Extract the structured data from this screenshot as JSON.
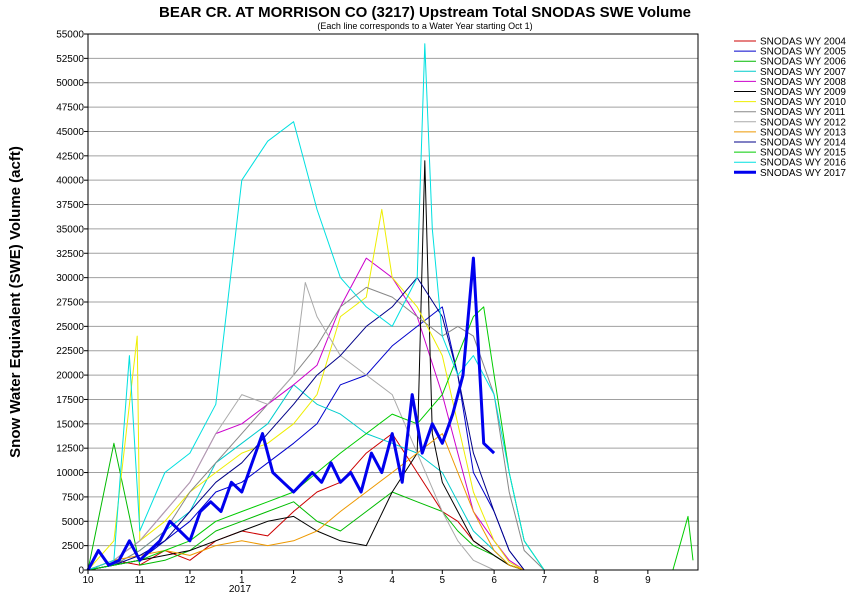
{
  "chart_data": {
    "type": "line",
    "title": "BEAR CR. AT MORRISON CO (3217) Upstream Total SNODAS SWE Volume",
    "subtitle": "(Each line corresponds to a Water Year starting Oct 1)",
    "ylabel": "Snow Water Equivalent (SWE) Volume (acft)",
    "xlabel": "",
    "ylim": [
      0,
      55000
    ],
    "ytick_step": 2500,
    "x_axis": {
      "unit": "month of water year (10 = Oct 1)",
      "range": [
        10,
        9.95
      ],
      "tick_labels": [
        "10",
        "11",
        "12",
        "1",
        "2",
        "3",
        "4",
        "5",
        "6",
        "7",
        "8",
        "9"
      ],
      "year_label": "2017"
    },
    "grid": true,
    "legend_position": "right",
    "highlight_series": "SNODAS WY 2017",
    "series": [
      {
        "name": "SNODAS WY 2004",
        "color": "#cc0000",
        "width": 1,
        "x": [
          10.0,
          10.5,
          11.0,
          11.5,
          12.0,
          12.5,
          1.0,
          1.5,
          2.0,
          2.5,
          3.0,
          3.5,
          4.0,
          4.5,
          5.0,
          5.3,
          5.6,
          6.0,
          6.3,
          6.6,
          7.0
        ],
        "y": [
          0,
          1000,
          500,
          2000,
          1000,
          3000,
          4000,
          3500,
          6000,
          8000,
          9000,
          12000,
          14000,
          10000,
          6000,
          5000,
          3000,
          1500,
          500,
          0,
          0
        ]
      },
      {
        "name": "SNODAS WY 2005",
        "color": "#0000cc",
        "width": 1,
        "x": [
          10.0,
          10.5,
          11.0,
          11.5,
          12.0,
          12.5,
          1.0,
          1.5,
          2.0,
          2.5,
          3.0,
          3.5,
          4.0,
          4.5,
          5.0,
          5.3,
          5.6,
          6.0,
          6.3,
          6.6,
          7.0
        ],
        "y": [
          0,
          500,
          1000,
          3000,
          5000,
          8000,
          9000,
          11000,
          13000,
          15000,
          19000,
          20000,
          23000,
          25000,
          27000,
          20000,
          10000,
          6000,
          2000,
          0,
          0
        ]
      },
      {
        "name": "SNODAS WY 2006",
        "color": "#00bb00",
        "width": 1,
        "x": [
          10.0,
          10.5,
          11.0,
          11.5,
          12.0,
          12.5,
          1.0,
          1.5,
          2.0,
          2.5,
          3.0,
          3.5,
          4.0,
          4.5,
          5.0,
          5.3,
          5.6,
          6.0,
          6.3,
          6.6,
          7.0
        ],
        "y": [
          0,
          13000,
          500,
          1000,
          2000,
          4000,
          5000,
          6000,
          7000,
          5000,
          4000,
          6000,
          8000,
          7000,
          6000,
          4000,
          2500,
          1500,
          500,
          0,
          0
        ]
      },
      {
        "name": "SNODAS WY 2007",
        "color": "#00cccc",
        "width": 1,
        "x": [
          10.0,
          10.5,
          11.0,
          11.5,
          12.0,
          12.5,
          1.0,
          1.5,
          2.0,
          2.5,
          3.0,
          3.5,
          4.0,
          4.5,
          5.0,
          5.3,
          5.6,
          6.0,
          6.3,
          6.6,
          7.0
        ],
        "y": [
          0,
          500,
          2000,
          4000,
          6000,
          11000,
          13000,
          15000,
          19000,
          17000,
          16000,
          14000,
          13000,
          12000,
          10000,
          7000,
          4000,
          2000,
          500,
          0,
          0
        ]
      },
      {
        "name": "SNODAS WY 2008",
        "color": "#cc00cc",
        "width": 1,
        "x": [
          10.0,
          10.5,
          11.0,
          11.5,
          12.0,
          12.5,
          1.0,
          1.5,
          2.0,
          2.5,
          3.0,
          3.5,
          4.0,
          4.5,
          5.0,
          5.3,
          5.6,
          6.0,
          6.3,
          6.6,
          7.0
        ],
        "y": [
          0,
          1000,
          3000,
          6000,
          9000,
          14000,
          15000,
          17000,
          19000,
          21000,
          27000,
          32000,
          30000,
          26000,
          18000,
          12000,
          6000,
          3000,
          1000,
          0,
          0
        ]
      },
      {
        "name": "SNODAS WY 2009",
        "color": "#000000",
        "width": 1,
        "x": [
          10.0,
          10.5,
          11.0,
          11.5,
          12.0,
          12.5,
          1.0,
          1.5,
          2.0,
          2.5,
          3.0,
          3.5,
          4.0,
          4.5,
          4.65,
          4.8,
          5.0,
          5.3,
          5.6,
          6.0,
          6.3,
          6.6,
          7.0
        ],
        "y": [
          0,
          500,
          1000,
          1500,
          2000,
          3000,
          4000,
          5000,
          5500,
          4000,
          3000,
          2500,
          8000,
          12000,
          42000,
          14000,
          9000,
          6000,
          3000,
          1500,
          500,
          0,
          0
        ]
      },
      {
        "name": "SNODAS WY 2010",
        "color": "#eeee00",
        "width": 1,
        "x": [
          10.0,
          10.5,
          10.95,
          11.0,
          11.5,
          12.0,
          12.5,
          1.0,
          1.5,
          2.0,
          2.5,
          3.0,
          3.5,
          3.8,
          4.0,
          4.5,
          5.0,
          5.3,
          5.6,
          6.0,
          6.3,
          6.6,
          7.0
        ],
        "y": [
          0,
          3000,
          24000,
          3000,
          5000,
          8000,
          10000,
          12000,
          13000,
          15000,
          18000,
          26000,
          28000,
          37000,
          30000,
          27000,
          22000,
          15000,
          8000,
          3000,
          800,
          0,
          0
        ]
      },
      {
        "name": "SNODAS WY 2011",
        "color": "#888888",
        "width": 1,
        "x": [
          10.0,
          10.5,
          11.0,
          11.5,
          12.0,
          12.5,
          1.0,
          1.5,
          2.0,
          2.5,
          3.0,
          3.5,
          4.0,
          4.5,
          5.0,
          5.3,
          5.6,
          6.0,
          6.3,
          6.6,
          7.0
        ],
        "y": [
          0,
          500,
          2000,
          4000,
          8000,
          11000,
          14000,
          17000,
          20000,
          23000,
          27000,
          29000,
          28000,
          26000,
          24000,
          25000,
          24000,
          18000,
          8000,
          2000,
          0
        ]
      },
      {
        "name": "SNODAS WY 2012",
        "color": "#aaaaaa",
        "width": 1,
        "x": [
          10.0,
          10.5,
          11.0,
          11.5,
          12.0,
          12.5,
          1.0,
          1.5,
          2.0,
          2.25,
          2.5,
          3.0,
          3.5,
          4.0,
          4.5,
          5.0,
          5.3,
          5.6,
          6.0,
          6.3,
          6.6,
          7.0
        ],
        "y": [
          0,
          1000,
          3000,
          6000,
          9000,
          14000,
          18000,
          17000,
          20000,
          29500,
          26000,
          22000,
          20000,
          18000,
          12000,
          6000,
          3000,
          1000,
          0,
          0,
          0,
          0
        ]
      },
      {
        "name": "SNODAS WY 2013",
        "color": "#ee9900",
        "width": 1,
        "x": [
          10.0,
          10.5,
          11.0,
          11.5,
          12.0,
          12.5,
          1.0,
          1.5,
          2.0,
          2.5,
          3.0,
          3.5,
          4.0,
          4.5,
          5.0,
          5.3,
          5.6,
          6.0,
          6.3,
          6.6,
          7.0
        ],
        "y": [
          0,
          1000,
          1500,
          2000,
          1500,
          2500,
          3000,
          2500,
          3000,
          4000,
          6000,
          8000,
          10000,
          12000,
          14000,
          10000,
          6000,
          2000,
          500,
          0,
          0
        ]
      },
      {
        "name": "SNODAS WY 2014",
        "color": "#000088",
        "width": 1,
        "x": [
          10.0,
          10.5,
          11.0,
          11.5,
          12.0,
          12.5,
          1.0,
          1.5,
          2.0,
          2.5,
          3.0,
          3.5,
          4.0,
          4.5,
          5.0,
          5.3,
          5.6,
          6.0,
          6.3,
          6.6,
          7.0
        ],
        "y": [
          0,
          500,
          1500,
          3000,
          6000,
          9000,
          11000,
          14000,
          17000,
          20000,
          22000,
          25000,
          27000,
          30000,
          26000,
          20000,
          12000,
          6000,
          2000,
          0,
          0
        ]
      },
      {
        "name": "SNODAS WY 2015",
        "color": "#00cc00",
        "width": 1,
        "x": [
          10.0,
          10.5,
          11.0,
          11.5,
          12.0,
          12.5,
          1.0,
          1.5,
          2.0,
          2.5,
          3.0,
          3.5,
          4.0,
          4.5,
          5.0,
          5.3,
          5.6,
          5.8,
          6.0,
          6.3,
          6.6,
          7.0,
          9.5,
          9.8,
          9.9
        ],
        "y": [
          0,
          500,
          1000,
          2000,
          3000,
          5000,
          6000,
          7000,
          8000,
          10000,
          12000,
          14000,
          16000,
          15000,
          18000,
          22000,
          26000,
          27000,
          20000,
          10000,
          3000,
          0,
          0,
          5500,
          1000
        ]
      },
      {
        "name": "SNODAS WY 2016",
        "color": "#00e0e0",
        "width": 1,
        "x": [
          10.0,
          10.5,
          10.8,
          11.0,
          11.5,
          12.0,
          12.5,
          1.0,
          1.5,
          2.0,
          2.5,
          3.0,
          3.5,
          4.0,
          4.5,
          4.65,
          4.8,
          5.0,
          5.3,
          5.6,
          6.0,
          6.3,
          6.6,
          7.0
        ],
        "y": [
          0,
          1000,
          22000,
          4000,
          10000,
          12000,
          17000,
          40000,
          44000,
          46000,
          37000,
          30000,
          27000,
          25000,
          30000,
          54000,
          35000,
          24000,
          20000,
          22000,
          18000,
          10000,
          3000,
          0
        ]
      },
      {
        "name": "SNODAS WY 2017",
        "color": "#0000ee",
        "width": 3,
        "x": [
          10.0,
          10.2,
          10.4,
          10.6,
          10.8,
          11.0,
          11.2,
          11.4,
          11.6,
          11.8,
          12.0,
          12.2,
          12.4,
          12.6,
          12.8,
          1.0,
          1.2,
          1.4,
          1.6,
          1.8,
          2.0,
          2.2,
          2.4,
          2.6,
          2.8,
          3.0,
          3.2,
          3.4,
          3.6,
          3.8,
          4.0,
          4.2,
          4.4,
          4.6,
          4.8,
          5.0,
          5.2,
          5.4,
          5.6,
          5.8,
          6.0
        ],
        "y": [
          0,
          2000,
          500,
          1000,
          3000,
          1000,
          2000,
          3000,
          5000,
          4000,
          3000,
          6000,
          7000,
          6000,
          9000,
          8000,
          11000,
          14000,
          10000,
          9000,
          8000,
          9000,
          10000,
          9000,
          11000,
          9000,
          10000,
          8000,
          12000,
          10000,
          14000,
          9000,
          18000,
          12000,
          15000,
          13000,
          16000,
          20000,
          32000,
          13000,
          12000
        ]
      }
    ]
  }
}
